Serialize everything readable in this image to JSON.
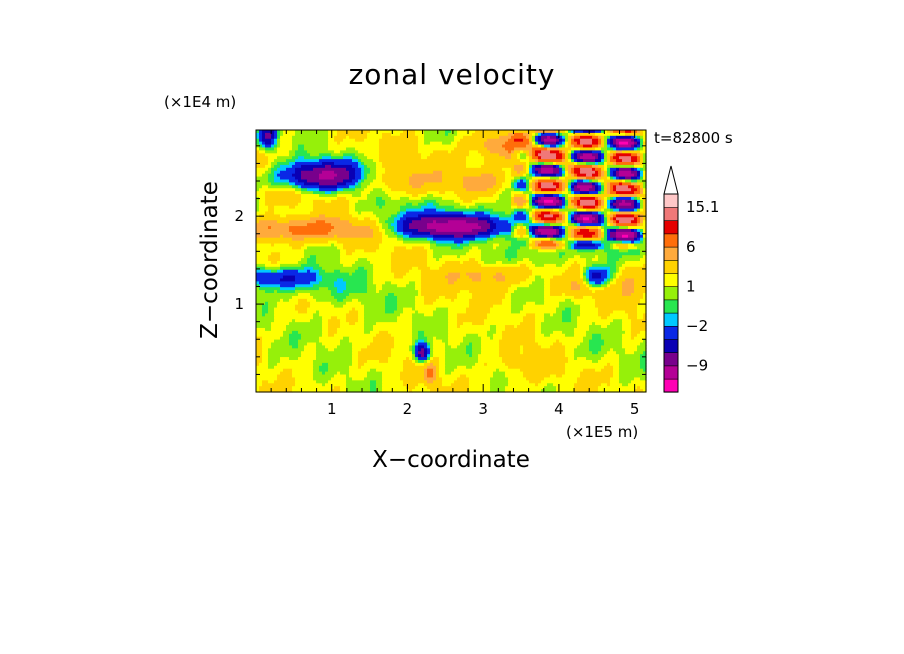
{
  "chart_data": {
    "type": "heatmap",
    "title": "zonal velocity",
    "xlabel": "X−coordinate",
    "ylabel": "Z−coordinate",
    "x_unit": "(×1E5 m)",
    "y_unit": "(×1E4 m)",
    "time_label": "t=82800 s",
    "xlim": [
      0.0,
      5.15
    ],
    "ylim": [
      0.0,
      2.98
    ],
    "x_ticks": [
      1,
      2,
      3,
      4,
      5
    ],
    "x_tick_labels": [
      "1",
      "2",
      "3",
      "4",
      "5"
    ],
    "y_ticks": [
      1,
      2
    ],
    "y_tick_labels": [
      "1",
      "2"
    ],
    "colorbar": {
      "levels": [
        -15,
        -12,
        -9,
        -6,
        -4,
        -2,
        -1,
        0,
        1,
        2,
        4,
        6,
        9,
        12,
        15.1
      ],
      "tick_values": [
        15.1,
        6,
        1,
        -2,
        -9
      ],
      "tick_labels": [
        "15.1",
        "6",
        "1",
        "−2",
        "−9"
      ],
      "colors": [
        "#ff00b4",
        "#b40096",
        "#78008c",
        "#0a00b4",
        "#0a28e6",
        "#00c8ff",
        "#28e650",
        "#96f00a",
        "#ffff00",
        "#ffd200",
        "#ffaa3c",
        "#ff6e0a",
        "#e60000",
        "#f07878",
        "#ffc8c8"
      ],
      "extend": "max"
    },
    "features": [
      {
        "x": 0.9,
        "z": 2.45,
        "sx": 0.55,
        "sz": 0.17,
        "v": -12
      },
      {
        "x": 0.15,
        "z": 2.9,
        "sx": 0.12,
        "sz": 0.14,
        "v": -8
      },
      {
        "x": 0.6,
        "z": 1.85,
        "sx": 1.0,
        "sz": 0.13,
        "v": 6
      },
      {
        "x": 0.45,
        "z": 2.25,
        "sx": 0.7,
        "sz": 0.12,
        "v": 1.5
      },
      {
        "x": 0.3,
        "z": 1.3,
        "sx": 0.6,
        "sz": 0.12,
        "v": -6
      },
      {
        "x": 0.8,
        "z": 1.15,
        "sx": 0.6,
        "sz": 0.15,
        "v": -1.5
      },
      {
        "x": 1.4,
        "z": 1.0,
        "sx": 0.5,
        "sz": 0.3,
        "v": -0.5
      },
      {
        "x": 2.6,
        "z": 1.88,
        "sx": 0.75,
        "sz": 0.13,
        "v": -12
      },
      {
        "x": 2.6,
        "z": 2.05,
        "sx": 1.1,
        "sz": 0.2,
        "v": -1.5
      },
      {
        "x": 1.7,
        "z": 2.4,
        "sx": 0.8,
        "sz": 0.15,
        "v": 3
      },
      {
        "x": 2.2,
        "z": 2.7,
        "sx": 1.4,
        "sz": 0.15,
        "v": 0.5
      },
      {
        "x": 3.3,
        "z": 2.8,
        "sx": 0.4,
        "sz": 0.15,
        "v": 5
      },
      {
        "x": 3.0,
        "z": 2.4,
        "sx": 0.35,
        "sz": 0.15,
        "v": 3
      },
      {
        "x": 3.05,
        "z": 1.32,
        "sx": 0.5,
        "sz": 0.14,
        "v": 3.5
      },
      {
        "x": 4.4,
        "z": 1.2,
        "sx": 0.35,
        "sz": 0.12,
        "v": 3
      },
      {
        "x": 5.0,
        "z": 1.25,
        "sx": 0.2,
        "sz": 0.25,
        "v": 2
      },
      {
        "x": 4.5,
        "z": 1.3,
        "sx": 0.18,
        "sz": 0.13,
        "v": -8
      },
      {
        "x": 4.6,
        "z": 1.7,
        "sx": 0.5,
        "sz": 0.18,
        "v": -2
      },
      {
        "x": 3.7,
        "z": 1.55,
        "sx": 0.45,
        "sz": 0.12,
        "v": -2
      },
      {
        "x": 1.1,
        "z": 0.7,
        "sx": 0.5,
        "sz": 0.2,
        "v": -0.5
      },
      {
        "x": 0.3,
        "z": 0.25,
        "sx": 0.4,
        "sz": 0.2,
        "v": -0.5
      },
      {
        "x": 2.2,
        "z": 0.45,
        "sx": 0.1,
        "sz": 0.1,
        "v": -9
      },
      {
        "x": 2.3,
        "z": 0.2,
        "sx": 0.08,
        "sz": 0.12,
        "v": 5
      },
      {
        "x": 4.3,
        "z": 0.5,
        "sx": 0.35,
        "sz": 0.2,
        "v": -0.6
      },
      {
        "x": 3.5,
        "z": 0.3,
        "sx": 0.4,
        "sz": 0.2,
        "v": 1.5
      },
      {
        "x": 3.3,
        "z": 0.7,
        "sx": 0.3,
        "sz": 0.2,
        "v": -0.5
      },
      {
        "x": 5.1,
        "z": 0.5,
        "sx": 0.15,
        "sz": 0.3,
        "v": -0.5
      }
    ],
    "wave_packet": {
      "x0": 3.35,
      "x1": 5.15,
      "z0": 1.6,
      "z1": 2.98,
      "amplitude": 13,
      "kx": 6.2,
      "kz": 18.0
    }
  }
}
